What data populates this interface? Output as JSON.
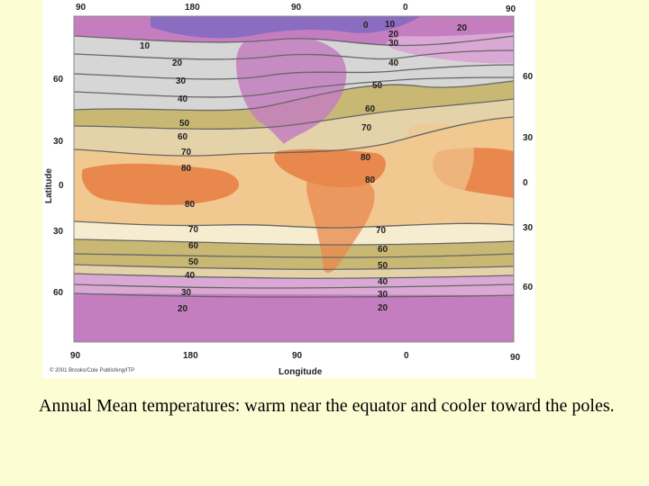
{
  "map": {
    "x_axis_label": "Longitude",
    "y_axis_label": "Latitude",
    "longitude_ticks": [
      "90",
      "180",
      "90",
      "0",
      "90"
    ],
    "latitude_ticks_left": [
      "60",
      "30",
      "0",
      "30",
      "60"
    ],
    "latitude_ticks_right": [
      "60",
      "30",
      "0",
      "30",
      "60"
    ],
    "copyright": "© 2001 Brooks/Cole Publishing/ITP",
    "isotherm_labels": {
      "north_hemisphere": [
        "10",
        "20",
        "30",
        "40",
        "50",
        "60",
        "70",
        "80",
        "0",
        "10",
        "20",
        "30",
        "40",
        "50",
        "60",
        "70",
        "80",
        "20"
      ],
      "south_hemisphere": [
        "80",
        "70",
        "60",
        "50",
        "40",
        "30",
        "20",
        "80",
        "70",
        "60",
        "50",
        "40",
        "30",
        "20"
      ]
    },
    "band_colors": {
      "coldest": "#8a6cc0",
      "very_cold": "#c47ec0",
      "cold": "#d9a8d4",
      "cool": "#e9d3e6",
      "mild": "#d6d6d6",
      "temperate": "#c9b873",
      "warm": "#e4d3a9",
      "hot": "#f0c890",
      "hottest": "#e8884c",
      "pale": "#f6ecd0"
    }
  },
  "caption": "Annual Mean temperatures:  warm near the equator and cooler toward the poles."
}
